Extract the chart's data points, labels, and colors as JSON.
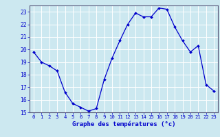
{
  "hours": [
    0,
    1,
    2,
    3,
    4,
    5,
    6,
    7,
    8,
    9,
    10,
    11,
    12,
    13,
    14,
    15,
    16,
    17,
    18,
    19,
    20,
    21,
    22,
    23
  ],
  "temps": [
    19.8,
    19.0,
    18.7,
    18.3,
    16.6,
    15.7,
    15.4,
    15.1,
    15.3,
    17.6,
    19.3,
    20.7,
    22.0,
    22.9,
    22.6,
    22.6,
    23.3,
    23.2,
    21.8,
    20.7,
    19.8,
    20.3,
    17.2,
    16.7
  ],
  "ylim": [
    15,
    23.5
  ],
  "yticks": [
    15,
    16,
    17,
    18,
    19,
    20,
    21,
    22,
    23
  ],
  "xlabel": "Graphe des températures (°c)",
  "line_color": "#0000cc",
  "marker_color": "#0000cc",
  "bg_color": "#cce8f0",
  "grid_color": "#ffffff",
  "tick_label_color": "#0000cc",
  "xlabel_color": "#0000cc",
  "spine_color": "#555577",
  "fig_bg": "#cce8f0"
}
